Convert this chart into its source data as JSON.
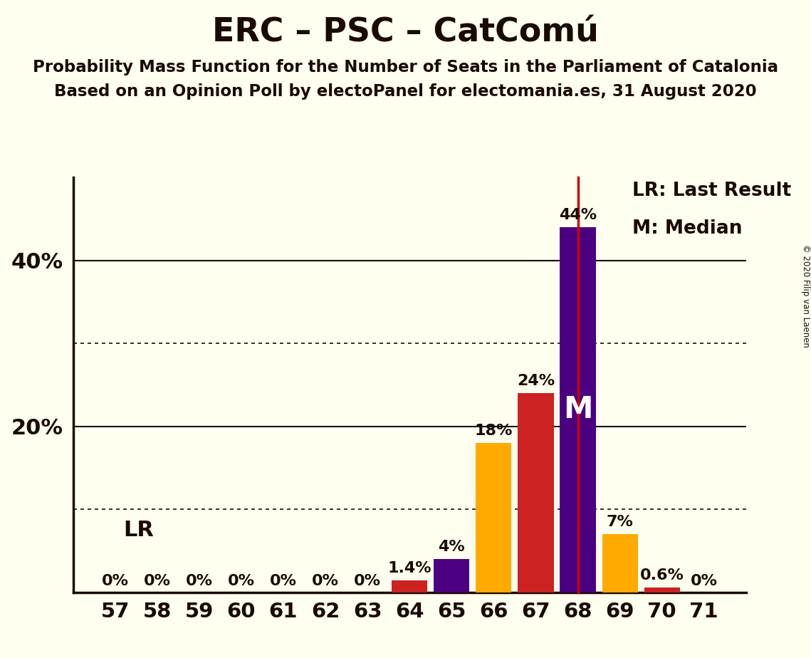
{
  "title": "ERC – PSC – CatComú",
  "subtitle1": "Probability Mass Function for the Number of Seats in the Parliament of Catalonia",
  "subtitle2": "Based on an Opinion Poll by electoPanel for electomania.es, 31 August 2020",
  "copyright": "© 2020 Filip van Laenen",
  "seats": [
    57,
    58,
    59,
    60,
    61,
    62,
    63,
    64,
    65,
    66,
    67,
    68,
    69,
    70,
    71
  ],
  "values": [
    0.0,
    0.0,
    0.0,
    0.0,
    0.0,
    0.0,
    0.0,
    1.4,
    4.0,
    18.0,
    24.0,
    44.0,
    7.0,
    0.6,
    0.0
  ],
  "bar_colors": [
    "#cc2222",
    "#cc2222",
    "#cc2222",
    "#cc2222",
    "#cc2222",
    "#cc2222",
    "#cc2222",
    "#cc2222",
    "#4b0082",
    "#ffaa00",
    "#cc2222",
    "#4b0082",
    "#ffaa00",
    "#cc2222",
    "#cc2222"
  ],
  "labels": [
    "0%",
    "0%",
    "0%",
    "0%",
    "0%",
    "0%",
    "0%",
    "1.4%",
    "4%",
    "18%",
    "24%",
    "44%",
    "7%",
    "0.6%",
    "0%"
  ],
  "background_color": "#fffff0",
  "axis_color": "#1a0a00",
  "text_color": "#1a0a00",
  "median_seat": 68,
  "last_result_seat": 68,
  "ylim": [
    0,
    50
  ],
  "legend_lr": "LR: Last Result",
  "legend_m": "M: Median",
  "lr_label": "LR",
  "m_label": "M",
  "solid_lines": [
    20,
    40
  ],
  "dotted_lines": [
    10,
    30
  ],
  "ytick_positions": [
    20,
    40
  ],
  "ytick_labels": [
    "20%",
    "40%"
  ]
}
